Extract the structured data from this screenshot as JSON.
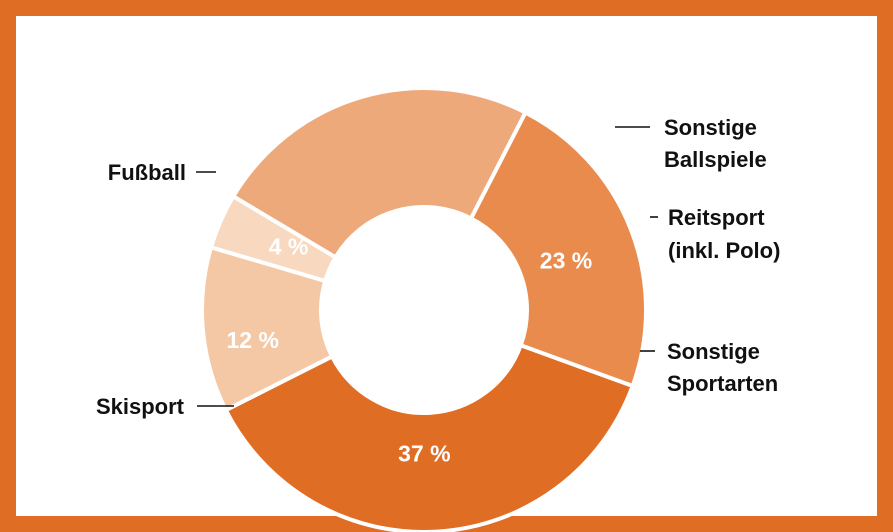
{
  "chart_data": {
    "type": "pie",
    "variant": "donut",
    "title": "",
    "slices": [
      {
        "label": [
          "Fußball"
        ],
        "value": 37,
        "value_label": "37 %",
        "color": "#e06d24"
      },
      {
        "label": [
          "Sonstige",
          "Ballspiele"
        ],
        "value": 12,
        "value_label": "12 %",
        "color": "#f4c8a5"
      },
      {
        "label": [
          "Reitsport",
          "(inkl. Polo)"
        ],
        "value": 4,
        "value_label": "4 %",
        "color": "#f8d8bf"
      },
      {
        "label": [
          "Sonstige",
          "Sportarten"
        ],
        "value": 24,
        "value_label": "",
        "color": "#eea97a"
      },
      {
        "label": [
          "Skisport"
        ],
        "value": 23,
        "value_label": "23 %",
        "color": "#e88b4c"
      }
    ]
  },
  "frame_color": "#e06d24"
}
